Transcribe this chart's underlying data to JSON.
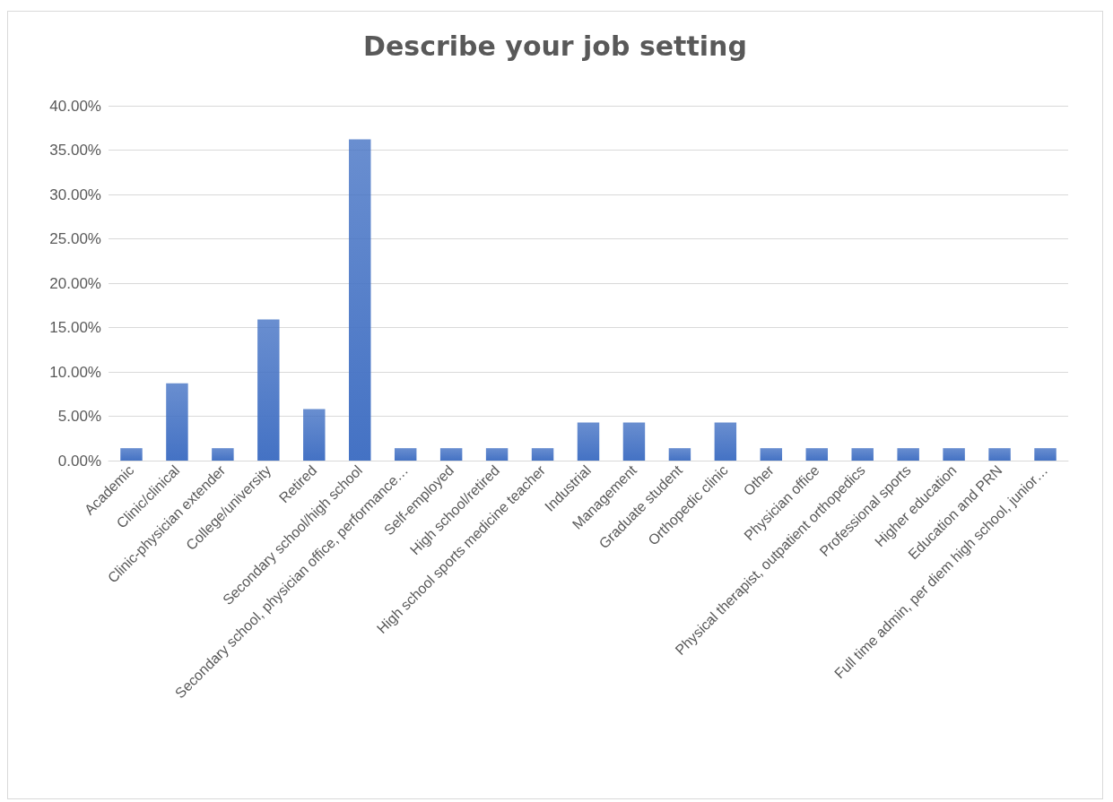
{
  "chart_data": {
    "type": "bar",
    "title": "Describe your job setting",
    "categories": [
      "Academic",
      "Clinic/clinical",
      "Clinic-physician extender",
      "College/university",
      "Retired",
      "Secondary school/high school",
      "Secondary school, physician office, performance…",
      "Self-employed",
      "High school/retired",
      "High school sports medicine teacher",
      "Industrial",
      "Management",
      "Graduate student",
      "Orthopedic clinic",
      "Other",
      "Physician office",
      "Physical therapist, outpatient orthopedics",
      "Professional sports",
      "Higher education",
      "Education and PRN",
      "Full time admin, per diem high school, junior…"
    ],
    "values": [
      1.4,
      8.7,
      1.4,
      15.9,
      5.8,
      36.2,
      1.4,
      1.4,
      1.4,
      1.4,
      4.3,
      4.3,
      1.4,
      4.3,
      1.4,
      1.4,
      1.4,
      1.4,
      1.4,
      1.4,
      1.4
    ],
    "color": "#4472c4",
    "ylim": [
      0,
      40
    ],
    "yticks": [
      {
        "value": 0,
        "label": "0.00%"
      },
      {
        "value": 5,
        "label": "5.00%"
      },
      {
        "value": 10,
        "label": "10.00%"
      },
      {
        "value": 15,
        "label": "15.00%"
      },
      {
        "value": 20,
        "label": "20.00%"
      },
      {
        "value": 25,
        "label": "25.00%"
      },
      {
        "value": 30,
        "label": "30.00%"
      },
      {
        "value": 35,
        "label": "35.00%"
      },
      {
        "value": 40,
        "label": "40.00%"
      }
    ],
    "grid": "y"
  }
}
